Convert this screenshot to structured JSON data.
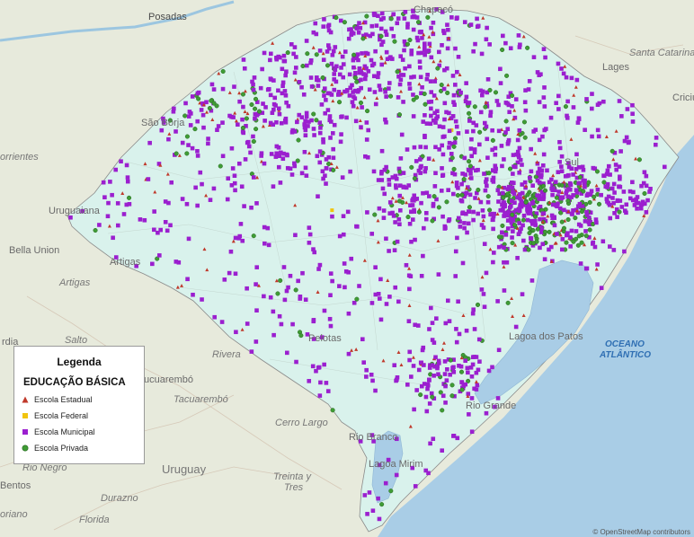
{
  "map": {
    "country_label": "Uruguay",
    "ocean_label_line1": "OCEANO",
    "ocean_label_line2": "ATLÂNTICO",
    "attribution": "© OpenStreetMap contributors",
    "place_labels": [
      "Posadas",
      "Chapecó",
      "Lages",
      "Santa Catarina",
      "Criciú",
      "São Borja",
      "orrientes",
      "Uruguaiana",
      "Bella Union",
      "Artigas",
      "Artigas",
      "Salto",
      "Rivera",
      "Tacuarembó",
      "ucuarembó",
      "Cerro Largo",
      "Rio Branco",
      "Lagoa Mirim",
      "Treinta y",
      "Tres",
      "Rio Negro",
      "Durazno",
      "Bentos",
      "oriano",
      "Florida",
      "rdia",
      "Lagoa dos Patos",
      "Rio Grande",
      "Sul",
      "Pelotas"
    ]
  },
  "legend": {
    "title": "Legenda",
    "subtitle": "EDUCAÇÃO BÁSICA",
    "items": [
      {
        "label": "Escola Estadual",
        "color": "#c0392b",
        "shape": "triangle"
      },
      {
        "label": "Escola Federal",
        "color": "#f1c40f",
        "shape": "square"
      },
      {
        "label": "Escola Municipal",
        "color": "#9b1fcf",
        "shape": "square"
      },
      {
        "label": "Escola Privada",
        "color": "#3f9c35",
        "shape": "circle"
      }
    ]
  }
}
